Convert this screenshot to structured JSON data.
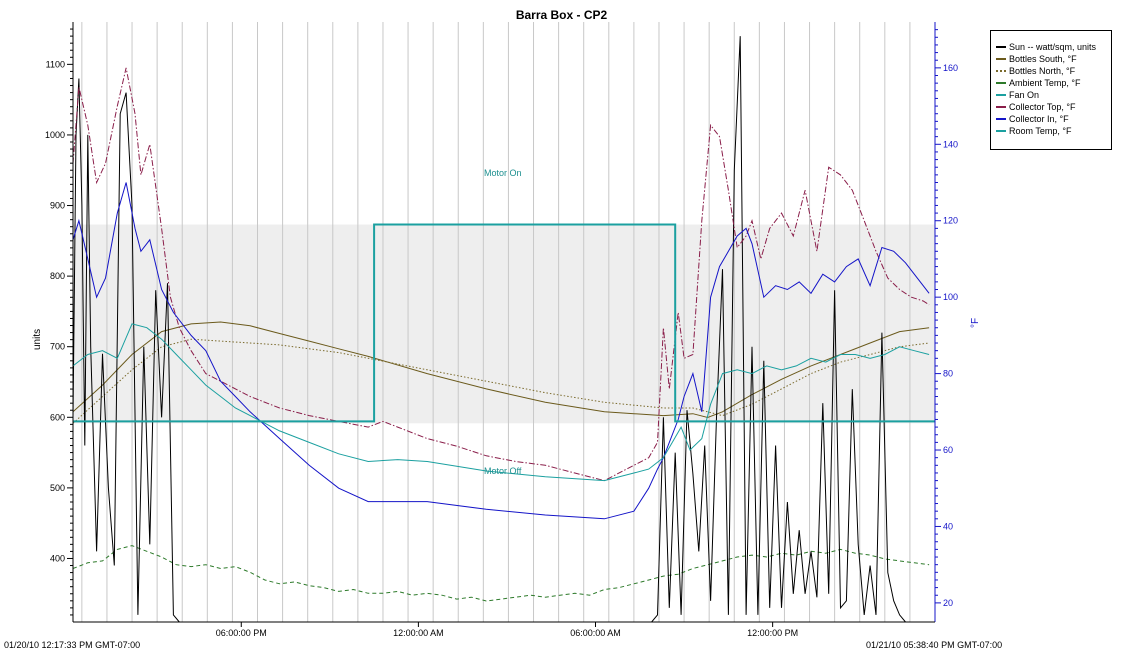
{
  "chart_data": {
    "type": "line",
    "title": "Barra Box - CP2",
    "start_label": "01/20/10 12:17:33 PM GMT-07:00",
    "end_label": "01/21/10 05:38:40 PM GMT-07:00",
    "ylabel_left": "units",
    "ylabel_right": "°F",
    "y_left_range": [
      310,
      1160
    ],
    "y_right_range": [
      15,
      172
    ],
    "y_left_ticks": [
      "400",
      "500",
      "600",
      "700",
      "800",
      "900",
      "1000",
      "1100"
    ],
    "y_right_ticks": [
      "20",
      "40",
      "60",
      "80",
      "100",
      "120",
      "140",
      "160"
    ],
    "x_range_hours": [
      0,
      29.2
    ],
    "x_ticks": [
      "06:00:00 PM",
      "12:00:00 AM",
      "06:00:00 AM",
      "12:00:00 PM"
    ],
    "band_range_f": [
      67,
      119
    ],
    "annotations": {
      "motor_on": "Motor On",
      "motor_off": "Motor Off"
    },
    "legend_position": "top-right",
    "series": [
      {
        "name": "Sun -- watt/sqm, units",
        "axis": "left",
        "color": "#000000",
        "style": "solid",
        "x": [
          0,
          0.1,
          0.2,
          0.3,
          0.4,
          0.5,
          0.6,
          0.8,
          1.0,
          1.2,
          1.4,
          1.6,
          1.8,
          2.0,
          2.2,
          2.4,
          2.6,
          2.8,
          3.0,
          3.2,
          3.4,
          3.6,
          3.8,
          4.0,
          4.2,
          19.6,
          19.8,
          20.0,
          20.2,
          20.4,
          20.6,
          20.8,
          21.0,
          21.2,
          21.4,
          21.6,
          21.8,
          22.0,
          22.2,
          22.4,
          22.6,
          22.8,
          23.0,
          23.2,
          23.4,
          23.6,
          23.8,
          24.0,
          24.2,
          24.4,
          24.6,
          24.8,
          25.0,
          25.2,
          25.4,
          25.6,
          25.8,
          26.0,
          26.2,
          26.4,
          26.6,
          26.8,
          27.0,
          27.2,
          27.4,
          27.6,
          27.8,
          28.0,
          28.2,
          28.4,
          28.6,
          28.8,
          29.0
        ],
        "y": [
          600,
          1000,
          1080,
          900,
          560,
          1000,
          700,
          410,
          690,
          500,
          390,
          1030,
          1060,
          900,
          320,
          700,
          420,
          780,
          600,
          790,
          320,
          310,
          310,
          310,
          310,
          310,
          320,
          600,
          330,
          550,
          320,
          610,
          520,
          410,
          560,
          340,
          600,
          810,
          320,
          950,
          1140,
          320,
          700,
          320,
          680,
          330,
          560,
          330,
          480,
          350,
          440,
          350,
          410,
          345,
          620,
          350,
          780,
          330,
          340,
          640,
          420,
          320,
          390,
          320,
          720,
          380,
          340,
          320,
          310,
          310,
          310,
          310,
          310
        ]
      },
      {
        "name": "Bottles South, °F",
        "axis": "right",
        "color": "#6b5a1c",
        "style": "solid",
        "x": [
          0,
          1,
          2,
          3,
          4,
          5,
          6,
          7,
          8,
          9,
          10,
          12,
          14,
          16,
          18,
          20,
          21,
          21.5,
          22,
          23,
          24,
          25,
          26,
          27,
          28,
          29
        ],
        "y": [
          70,
          77,
          85,
          91,
          93,
          93.5,
          92.5,
          90.5,
          88.5,
          86.5,
          84.5,
          80,
          76,
          72.5,
          70,
          69,
          69.5,
          68.5,
          70,
          74.5,
          78.5,
          82,
          85,
          88,
          91,
          92
        ]
      },
      {
        "name": "Bottles North, °F",
        "axis": "right",
        "color": "#7a6a2c",
        "style": "dotted",
        "x": [
          0,
          1,
          2,
          3,
          4,
          5,
          6,
          7,
          8,
          9,
          10,
          12,
          14,
          16,
          18,
          20,
          21,
          22,
          23,
          24,
          25,
          26,
          27,
          28,
          29
        ],
        "y": [
          67,
          74,
          81,
          87,
          89,
          88.5,
          88,
          87.5,
          86.5,
          85.5,
          84,
          81,
          78,
          75,
          72.5,
          71,
          71,
          69,
          72,
          76,
          80,
          83,
          85,
          87,
          88
        ]
      },
      {
        "name": "Ambient Temp, °F",
        "axis": "right",
        "color": "#2d7a2a",
        "style": "dashed",
        "x": [
          0,
          0.5,
          1,
          1.5,
          2,
          2.5,
          3,
          3.5,
          4,
          4.5,
          5,
          5.5,
          6,
          6.5,
          7,
          7.5,
          8,
          8.5,
          9,
          9.5,
          10,
          10.5,
          11,
          11.5,
          12,
          12.5,
          13,
          13.5,
          14,
          14.5,
          15,
          15.5,
          16,
          16.5,
          17,
          17.5,
          18,
          18.5,
          19,
          19.5,
          20,
          20.5,
          21,
          21.5,
          22,
          22.5,
          23,
          23.5,
          24,
          24.5,
          25,
          25.5,
          26,
          26.5,
          27,
          27.5,
          28,
          28.5,
          29
        ],
        "y": [
          29,
          30.5,
          31,
          34,
          35,
          33.5,
          32,
          30,
          29.5,
          30,
          29,
          29.5,
          28,
          26,
          25,
          25.5,
          24.5,
          24,
          23,
          23.5,
          22.5,
          22.5,
          23,
          22,
          22.5,
          22,
          21,
          21.5,
          20.5,
          21,
          21.5,
          22,
          21.5,
          22,
          22.5,
          22,
          23.5,
          24,
          25,
          26,
          27,
          27.5,
          29,
          30,
          31,
          32,
          32.5,
          32,
          33,
          32.5,
          33.5,
          33,
          34,
          33,
          32.5,
          31.5,
          31,
          30.5,
          30
        ]
      },
      {
        "name": "Fan On",
        "axis": "right",
        "color": "#1ba0a0",
        "style": "solid",
        "x": [
          0,
          10.2,
          10.2,
          20.4,
          20.4,
          29.2
        ],
        "y": [
          67.5,
          67.5,
          119,
          119,
          67.5,
          67.5
        ]
      },
      {
        "name": "Collector Top, °F",
        "axis": "right",
        "color": "#8a1e4a",
        "style": "dashdot",
        "x": [
          0,
          0.2,
          0.5,
          0.8,
          1.1,
          1.5,
          1.8,
          2.1,
          2.3,
          2.6,
          3.0,
          3.3,
          3.6,
          4.0,
          4.5,
          5,
          6,
          7,
          8,
          9,
          10,
          10.5,
          11,
          12,
          13,
          14,
          15,
          16,
          17,
          18,
          19,
          19.5,
          19.8,
          20.0,
          20.2,
          20.5,
          20.7,
          21.0,
          21.3,
          21.6,
          21.9,
          22.2,
          22.5,
          22.8,
          23.0,
          23.3,
          23.6,
          24.0,
          24.4,
          24.8,
          25.2,
          25.6,
          26.0,
          26.4,
          26.8,
          27.2,
          27.6,
          28.0,
          28.4,
          28.8,
          29.0
        ],
        "y": [
          135,
          155,
          145,
          130,
          135,
          150,
          160,
          148,
          132,
          140,
          118,
          100,
          92,
          86,
          80,
          78,
          74,
          71,
          69,
          67.5,
          66,
          67.5,
          66,
          63,
          61,
          58.5,
          57,
          56,
          54,
          52,
          56,
          58,
          62,
          92,
          76,
          96,
          84,
          85,
          120,
          145,
          142,
          128,
          113,
          116,
          120,
          110,
          118,
          122,
          116,
          128,
          112,
          134,
          132,
          128,
          120,
          112,
          105,
          102,
          100,
          99,
          98
        ]
      },
      {
        "name": "Collector In, °F",
        "axis": "right",
        "color": "#1414c8",
        "style": "solid",
        "x": [
          0,
          0.2,
          0.5,
          0.8,
          1.1,
          1.5,
          1.8,
          2.1,
          2.3,
          2.6,
          3.0,
          3.4,
          4.0,
          4.5,
          5,
          5.5,
          6,
          7,
          8,
          9,
          10,
          11,
          12,
          14,
          16,
          18,
          19,
          19.5,
          19.8,
          20.0,
          20.2,
          20.5,
          20.7,
          21.0,
          21.3,
          21.6,
          21.9,
          22.2,
          22.5,
          22.8,
          23.0,
          23.4,
          23.8,
          24.2,
          24.6,
          25.0,
          25.4,
          25.8,
          26.2,
          26.6,
          27.0,
          27.4,
          27.8,
          28.2,
          28.6,
          29.0
        ],
        "y": [
          115,
          120,
          110,
          100,
          105,
          122,
          130,
          118,
          112,
          115,
          102,
          96,
          90,
          86,
          78,
          74,
          70,
          63,
          56,
          50,
          46.5,
          46.5,
          46.5,
          44.5,
          43,
          42,
          44,
          50,
          55,
          58,
          62,
          68,
          74,
          80,
          70,
          100,
          108,
          112,
          116,
          118,
          114,
          100,
          103,
          102,
          104,
          101,
          106,
          104,
          108,
          110,
          103,
          113,
          112,
          109,
          105,
          101
        ]
      },
      {
        "name": "Room Temp, °F",
        "axis": "right",
        "color": "#1ba0a0",
        "style": "solid",
        "x": [
          0,
          0.5,
          1,
          1.5,
          2,
          2.5,
          3,
          3.5,
          4,
          4.5,
          5,
          5.5,
          6,
          6.5,
          7,
          8,
          9,
          10,
          11,
          12,
          14,
          16,
          18,
          19,
          19.5,
          20,
          20.3,
          20.6,
          20.9,
          21.3,
          21.6,
          22,
          22.5,
          23,
          23.5,
          24,
          24.5,
          25,
          25.5,
          26,
          26.5,
          27,
          27.5,
          28,
          28.5,
          29
        ],
        "y": [
          82,
          85,
          86,
          84,
          93,
          92,
          89,
          85,
          81,
          77,
          74,
          71,
          69,
          67,
          65,
          62,
          59,
          57,
          57.5,
          57,
          54.5,
          53,
          52,
          54,
          55,
          58,
          62,
          66,
          60,
          63,
          72,
          80,
          81,
          80,
          82,
          81,
          82,
          84,
          83,
          85,
          85,
          84,
          85,
          87,
          86,
          85
        ]
      }
    ]
  }
}
